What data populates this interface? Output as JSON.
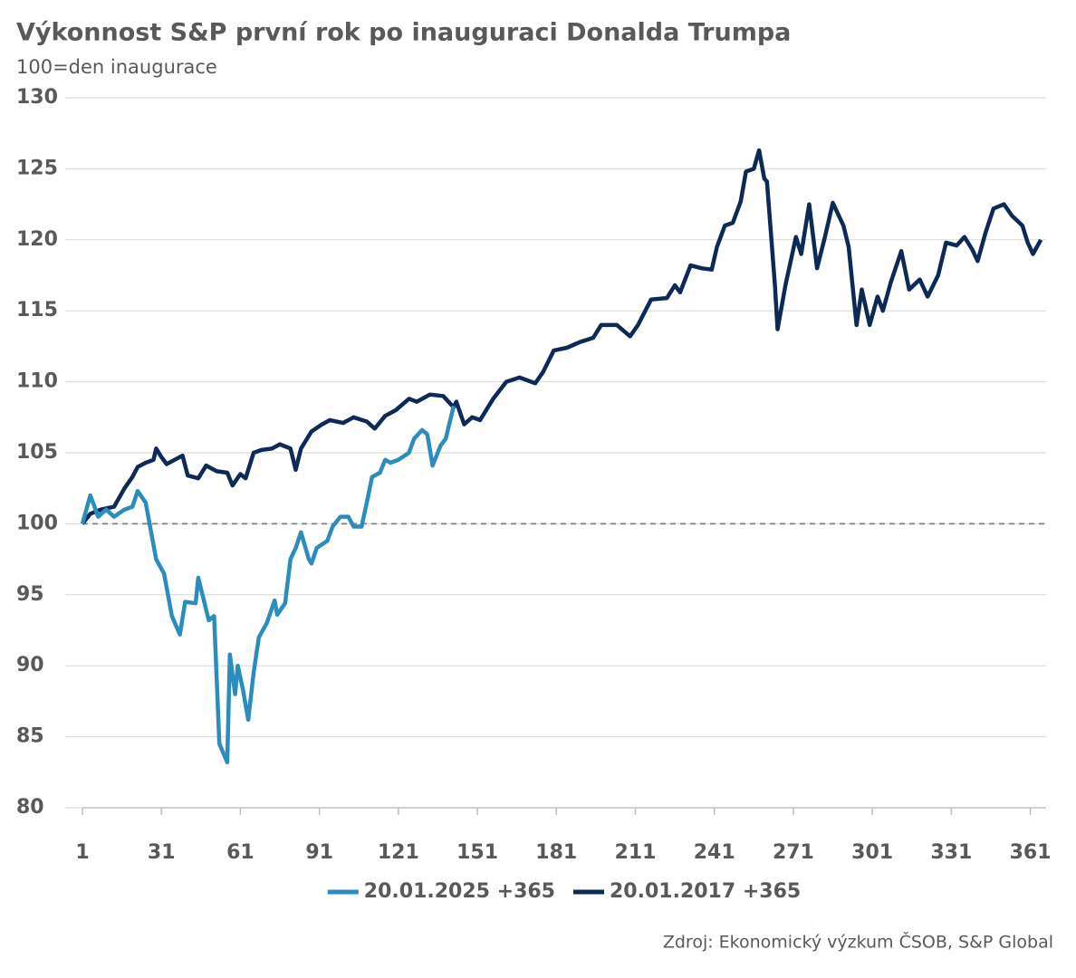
{
  "chart_data": {
    "type": "line",
    "title": "Výkonnost S&P první rok po inauguraci Donalda Trumpa",
    "subtitle": "100=den inaugurace",
    "source": "Zdroj: Ekonomický výzkum ČSOB, S&P Global",
    "xlim": [
      1,
      367
    ],
    "xticks": [
      1,
      31,
      61,
      91,
      121,
      151,
      181,
      211,
      241,
      271,
      301,
      331,
      361
    ],
    "ylim": [
      80,
      130
    ],
    "yticks": [
      80,
      85,
      90,
      95,
      100,
      105,
      110,
      115,
      120,
      125,
      130
    ],
    "grid": true,
    "reference_line": 100,
    "legend": "bottom",
    "series": [
      {
        "name": "20.01.2025 +365",
        "color": "#2b8cbe",
        "x": [
          1,
          4,
          7,
          10,
          13,
          17,
          20,
          22,
          25,
          29,
          32,
          35,
          38,
          40,
          44,
          45,
          49,
          51,
          53,
          56,
          57,
          59,
          60,
          62,
          64,
          66,
          68,
          71,
          74,
          75,
          78,
          80,
          82,
          84,
          87,
          88,
          90,
          94,
          96,
          99,
          102,
          104,
          107,
          109,
          111,
          114,
          116,
          118,
          121,
          125,
          127,
          130,
          132,
          134,
          137,
          139,
          142
        ],
        "values": [
          100,
          102,
          100.5,
          101,
          100.5,
          101,
          101.2,
          102.3,
          101.5,
          97.5,
          96.5,
          93.5,
          92.2,
          94.5,
          94.4,
          96.2,
          93.2,
          93.5,
          84.5,
          83.2,
          90.8,
          88,
          90,
          88.3,
          86.2,
          89.5,
          92,
          93,
          94.6,
          93.6,
          94.4,
          97.5,
          98.3,
          99.4,
          97.5,
          97.2,
          98.3,
          98.8,
          99.8,
          100.5,
          100.5,
          99.8,
          99.8,
          101.5,
          103.3,
          103.6,
          104.5,
          104.3,
          104.5,
          105,
          106,
          106.6,
          106.3,
          104.1,
          105.5,
          106,
          108.3
        ]
      },
      {
        "name": "20.01.2017 +365",
        "color": "#0c2a55",
        "x": [
          1,
          4,
          8,
          13,
          17,
          20,
          22,
          25,
          28,
          29,
          31,
          33,
          36,
          39,
          41,
          45,
          48,
          52,
          56,
          58,
          61,
          63,
          66,
          69,
          73,
          76,
          80,
          82,
          84,
          88,
          92,
          95,
          100,
          104,
          109,
          112,
          116,
          120,
          125,
          128,
          133,
          138,
          142,
          143,
          146,
          149,
          152,
          157,
          162,
          167,
          173,
          176,
          180,
          185,
          190,
          195,
          198,
          204,
          209,
          212,
          217,
          223,
          226,
          228,
          232,
          236,
          240,
          242,
          245,
          248,
          251,
          253,
          256,
          258,
          260,
          261,
          264,
          265,
          268,
          272,
          274,
          277,
          280,
          283,
          286,
          290,
          292,
          295,
          297,
          300,
          303,
          305,
          308,
          312,
          315,
          319,
          322,
          326,
          329,
          333,
          336,
          339,
          341,
          344,
          347,
          351,
          354,
          358,
          360,
          362,
          365
        ],
        "values": [
          100,
          100.7,
          101,
          101.2,
          102.5,
          103.3,
          104,
          104.3,
          104.5,
          105.3,
          104.7,
          104.2,
          104.5,
          104.8,
          103.4,
          103.2,
          104.1,
          103.7,
          103.6,
          102.7,
          103.5,
          103.2,
          105,
          105.2,
          105.3,
          105.6,
          105.3,
          103.8,
          105.3,
          106.5,
          107,
          107.3,
          107.1,
          107.5,
          107.2,
          106.7,
          107.6,
          108,
          108.8,
          108.6,
          109.1,
          109,
          108.2,
          108.6,
          107,
          107.5,
          107.3,
          108.8,
          110,
          110.3,
          109.9,
          110.7,
          112.2,
          112.4,
          112.8,
          113.1,
          114,
          114,
          113.2,
          114,
          115.8,
          115.9,
          116.8,
          116.3,
          118.2,
          118,
          117.9,
          119.5,
          121,
          121.2,
          122.7,
          124.8,
          125,
          126.3,
          124.3,
          124.1,
          116.8,
          113.7,
          116.8,
          120.2,
          119,
          122.5,
          118,
          120.2,
          122.6,
          121,
          119.5,
          114,
          116.5,
          114,
          116,
          115,
          117,
          119.2,
          116.5,
          117.2,
          116,
          117.5,
          119.8,
          119.6,
          120.2,
          119.3,
          118.5,
          120.5,
          122.2,
          122.5,
          121.7,
          121,
          119.8,
          119,
          120
        ]
      }
    ]
  }
}
